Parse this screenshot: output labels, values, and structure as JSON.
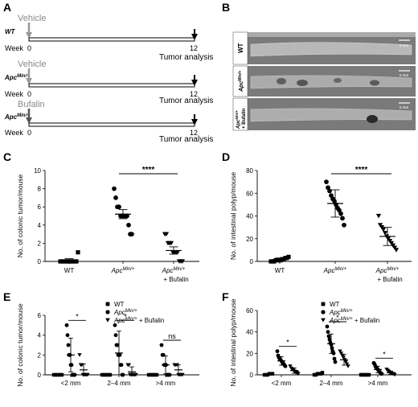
{
  "panels": {
    "a": {
      "letter": "A",
      "rows": [
        {
          "treatment": "Vehicle",
          "genotype": "WT",
          "genotype_sup": "",
          "week_label": "Week",
          "start": "0",
          "end": "12",
          "end_label": "Tumor analysis"
        },
        {
          "treatment": "Vehicle",
          "genotype": "Apc",
          "genotype_sup": "Min/+",
          "week_label": "Week",
          "start": "0",
          "end": "12",
          "end_label": "Tumor analysis"
        },
        {
          "treatment": "Bufalin",
          "genotype": "Apc",
          "genotype_sup": "Min/+",
          "week_label": "Week",
          "start": "0",
          "end": "12",
          "end_label": "Tumor analysis"
        }
      ]
    },
    "b": {
      "letter": "B",
      "rows": [
        {
          "label": "WT",
          "sup": "",
          "line2": ""
        },
        {
          "label": "Apc",
          "sup": "Min/+",
          "line2": ""
        },
        {
          "label": "Apc",
          "sup": "Min/+",
          "line2": "+ Bufalin"
        }
      ],
      "scale_bar": "5 mm"
    },
    "c": {
      "letter": "C"
    },
    "d": {
      "letter": "D"
    },
    "e": {
      "letter": "E"
    },
    "f": {
      "letter": "F"
    }
  },
  "group_labels": {
    "wt": "WT",
    "apc": "Apc",
    "apc_sup": "Min/+",
    "bufalin": "+ Bufalin"
  },
  "chart_data": [
    {
      "id": "C",
      "type": "scatter",
      "ylabel": "No. of colonic tumor/mouse",
      "ylim": [
        0,
        10
      ],
      "yticks": [
        "0",
        "2",
        "4",
        "6",
        "8",
        "10"
      ],
      "categories": [
        "WT",
        "ApcMin/+",
        "ApcMin/+ + Bufalin"
      ],
      "series": [
        {
          "values": [
            0,
            0,
            0,
            0,
            0,
            0,
            0,
            0,
            0,
            0,
            0,
            1
          ],
          "mean": 0.1,
          "err": 0.2
        },
        {
          "values": [
            8,
            7,
            6,
            6,
            5,
            5,
            5,
            5,
            5,
            4,
            3,
            3
          ],
          "mean": 5.2,
          "err": 0.5
        },
        {
          "values": [
            3,
            3,
            2,
            2,
            2,
            1,
            1,
            1,
            1,
            0,
            0,
            0
          ],
          "mean": 1.2,
          "err": 0.4
        }
      ],
      "significance": [
        {
          "from": 1,
          "to": 2,
          "label": "****"
        }
      ]
    },
    {
      "id": "D",
      "type": "scatter",
      "ylabel": "No. of intestinal polyp/mouse",
      "ylim": [
        0,
        80
      ],
      "yticks": [
        "0",
        "20",
        "40",
        "60",
        "80"
      ],
      "categories": [
        "WT",
        "ApcMin/+",
        "ApcMin/+ + Bufalin"
      ],
      "series": [
        {
          "values": [
            0,
            0,
            0,
            1,
            1,
            1,
            1,
            2,
            2,
            3,
            3,
            4
          ],
          "mean": 1.5,
          "err": 1.5
        },
        {
          "values": [
            70,
            65,
            62,
            58,
            55,
            53,
            50,
            47,
            45,
            42,
            38,
            32
          ],
          "mean": 51,
          "err": 12
        },
        {
          "values": [
            40,
            32,
            30,
            28,
            25,
            22,
            20,
            18,
            16,
            14,
            12,
            10
          ],
          "mean": 22,
          "err": 8
        }
      ],
      "significance": [
        {
          "from": 1,
          "to": 2,
          "label": "****"
        }
      ]
    },
    {
      "id": "E",
      "type": "scatter",
      "ylabel": "No. of colonic tumor/mouse",
      "ylim": [
        0,
        6
      ],
      "yticks": [
        "0",
        "2",
        "4",
        "6"
      ],
      "categories": [
        "<2 mm",
        "2–4 mm",
        ">4 mm"
      ],
      "legend": [
        "WT",
        "ApcMin/+",
        "ApcMin/+ + Bufalin"
      ],
      "legend_position": "top-right",
      "groups": [
        {
          "series": [
            {
              "values": [
                0,
                0,
                0,
                0,
                0,
                0
              ],
              "mean": 0,
              "err": 0
            },
            {
              "values": [
                5,
                4,
                3,
                2,
                2,
                1,
                1,
                0,
                0,
                0,
                0
              ],
              "mean": 2.0,
              "err": 1.7
            },
            {
              "values": [
                2,
                1,
                1,
                0,
                0,
                0,
                0,
                0
              ],
              "mean": 0.5,
              "err": 0.6
            }
          ],
          "sig": "*"
        },
        {
          "series": [
            {
              "values": [
                0,
                0,
                0,
                0,
                0,
                0
              ],
              "mean": 0,
              "err": 0
            },
            {
              "values": [
                5,
                4,
                3,
                3,
                2,
                2,
                2,
                1,
                1,
                0,
                0
              ],
              "mean": 2.2,
              "err": 2.2
            },
            {
              "values": [
                1,
                1,
                0,
                0,
                0,
                0,
                0,
                0
              ],
              "mean": 0.3,
              "err": 0.5
            }
          ],
          "sig": "*"
        },
        {
          "series": [
            {
              "values": [
                0,
                0,
                0,
                0,
                0,
                0
              ],
              "mean": 0,
              "err": 0
            },
            {
              "values": [
                3,
                2,
                2,
                1,
                1,
                1,
                0,
                0,
                0,
                0
              ],
              "mean": 1.0,
              "err": 0.9
            },
            {
              "values": [
                1,
                1,
                1,
                0,
                0,
                0,
                0
              ],
              "mean": 0.5,
              "err": 0.5
            }
          ],
          "sig": "ns"
        }
      ]
    },
    {
      "id": "F",
      "type": "scatter",
      "ylabel": "No. of intestinal polyp/mouse",
      "ylim": [
        0,
        60
      ],
      "yticks": [
        "0",
        "20",
        "40",
        "60"
      ],
      "categories": [
        "<2 mm",
        "2–4 mm",
        ">4 mm"
      ],
      "legend": [
        "WT",
        "ApcMin/+",
        "ApcMin/+ + Bufalin"
      ],
      "legend_position": "top-right",
      "groups": [
        {
          "series": [
            {
              "values": [
                0,
                0,
                0,
                1,
                1,
                1
              ],
              "mean": 0.5,
              "err": 0.5
            },
            {
              "values": [
                22,
                18,
                16,
                15,
                14,
                13,
                12,
                11,
                10,
                9,
                8
              ],
              "mean": 13,
              "err": 4
            },
            {
              "values": [
                8,
                6,
                5,
                4,
                3,
                2,
                2,
                1
              ],
              "mean": 4,
              "err": 2.5
            }
          ],
          "sig": "*"
        },
        {
          "series": [
            {
              "values": [
                0,
                0,
                1,
                1,
                1,
                2
              ],
              "mean": 1,
              "err": 1
            },
            {
              "values": [
                45,
                40,
                36,
                33,
                30,
                28,
                25,
                22,
                20,
                15,
                12
              ],
              "mean": 29,
              "err": 9
            },
            {
              "values": [
                22,
                20,
                18,
                16,
                14,
                12,
                10,
                8
              ],
              "mean": 14,
              "err": 5
            }
          ],
          "sig": "*"
        },
        {
          "series": [
            {
              "values": [
                0,
                0,
                0,
                0,
                0,
                0
              ],
              "mean": 0,
              "err": 0
            },
            {
              "values": [
                11,
                10,
                8,
                7,
                6,
                5,
                4,
                3,
                2,
                1,
                1
              ],
              "mean": 5,
              "err": 3
            },
            {
              "values": [
                5,
                4,
                3,
                2,
                2,
                1,
                1,
                0
              ],
              "mean": 2,
              "err": 1.5
            }
          ],
          "sig": "*"
        }
      ]
    }
  ]
}
